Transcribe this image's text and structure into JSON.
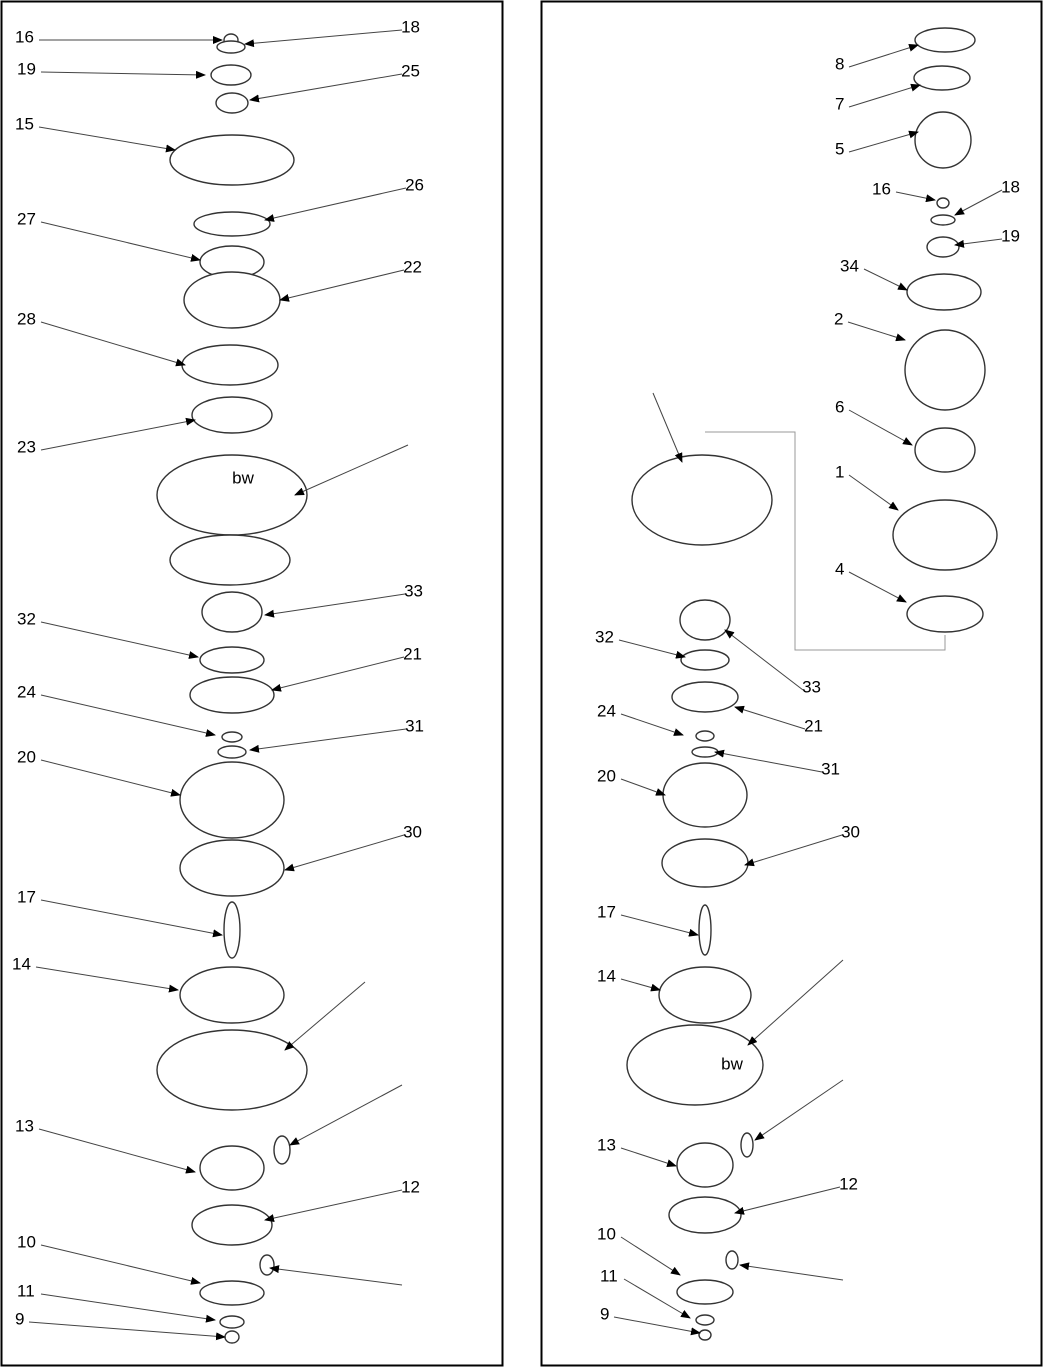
{
  "panels": [
    {
      "labels": [
        "16",
        "18",
        "19",
        "25",
        "15",
        "26",
        "27",
        "22",
        "28",
        "23",
        "33",
        "32",
        "21",
        "24",
        "31",
        "20",
        "30",
        "17",
        "14",
        "13",
        "12",
        "10",
        "11",
        "9"
      ],
      "marks": [
        "bw"
      ]
    },
    {
      "labels": [
        "8",
        "7",
        "5",
        "16",
        "18",
        "19",
        "34",
        "2",
        "6",
        "1",
        "4",
        "32",
        "33",
        "21",
        "24",
        "31",
        "20",
        "30",
        "17",
        "14",
        "13",
        "12",
        "10",
        "11",
        "9"
      ],
      "marks": [
        "bw"
      ]
    }
  ]
}
